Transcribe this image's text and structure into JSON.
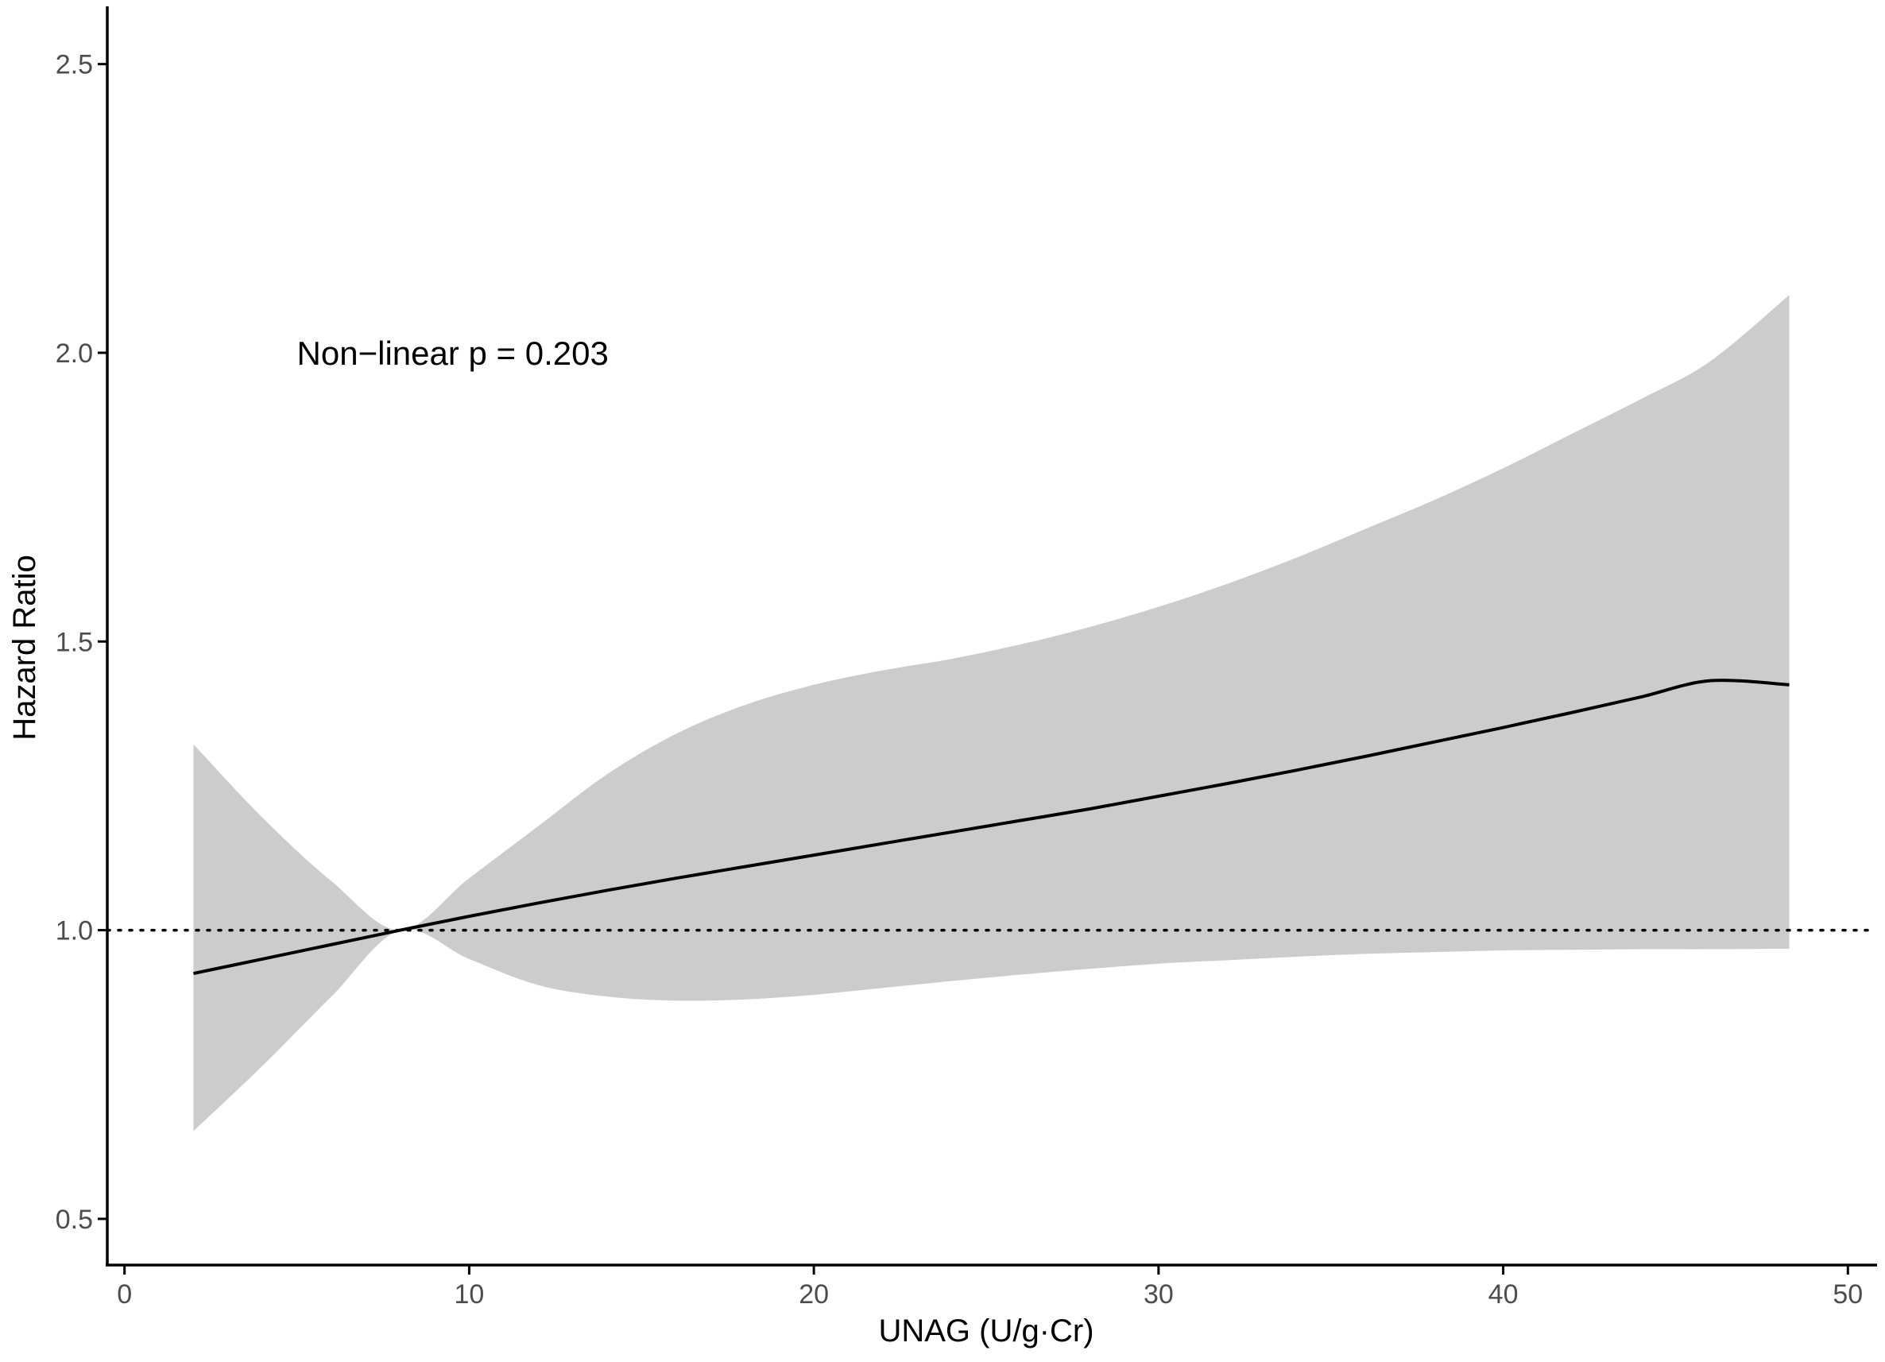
{
  "chart_data": {
    "type": "line",
    "title": "",
    "xlabel": "UNAG (U/g·Cr)",
    "ylabel": "Hazard Ratio",
    "xlim": [
      -0.5,
      50.8
    ],
    "ylim": [
      0.42,
      2.6
    ],
    "x_ticks": [
      0,
      10,
      20,
      30,
      40,
      50
    ],
    "x_tick_labels": [
      "0",
      "10",
      "20",
      "30",
      "40",
      "50"
    ],
    "y_ticks": [
      0.5,
      1.0,
      1.5,
      2.0,
      2.5
    ],
    "y_tick_labels": [
      "0.5",
      "1.0",
      "1.5",
      "2.0",
      "2.5"
    ],
    "grid": false,
    "legend": "none",
    "reference_line": {
      "y": 1.0,
      "style": "dotted",
      "color": "#000000"
    },
    "annotation": {
      "text": "Non−linear p = 0.203",
      "x": 5,
      "y": 2.0
    },
    "colors": {
      "line": "#000000",
      "band": "#cccccc",
      "axis": "#000000",
      "tick_text": "#4d4d4d"
    },
    "series": [
      {
        "x": [
          2,
          4,
          6,
          8,
          10,
          12,
          14,
          16,
          18,
          20,
          22,
          24,
          26,
          28,
          30,
          32,
          34,
          36,
          38,
          40,
          42,
          44,
          46,
          48.3
        ],
        "y": [
          0.925,
          0.95,
          0.975,
          1.0,
          1.024,
          1.047,
          1.069,
          1.09,
          1.11,
          1.13,
          1.15,
          1.17,
          1.19,
          1.21,
          1.232,
          1.254,
          1.277,
          1.301,
          1.326,
          1.351,
          1.377,
          1.404,
          1.432,
          1.425
        ],
        "lower": [
          0.652,
          0.765,
          0.885,
          1.0,
          0.95,
          0.905,
          0.885,
          0.878,
          0.88,
          0.888,
          0.9,
          0.912,
          0.923,
          0.933,
          0.942,
          0.948,
          0.954,
          0.959,
          0.962,
          0.965,
          0.966,
          0.967,
          0.967,
          0.968
        ],
        "upper": [
          1.322,
          1.195,
          1.085,
          1.0,
          1.09,
          1.18,
          1.27,
          1.34,
          1.39,
          1.425,
          1.45,
          1.47,
          1.495,
          1.525,
          1.56,
          1.6,
          1.645,
          1.695,
          1.745,
          1.8,
          1.86,
          1.92,
          1.985,
          2.1
        ]
      }
    ]
  }
}
